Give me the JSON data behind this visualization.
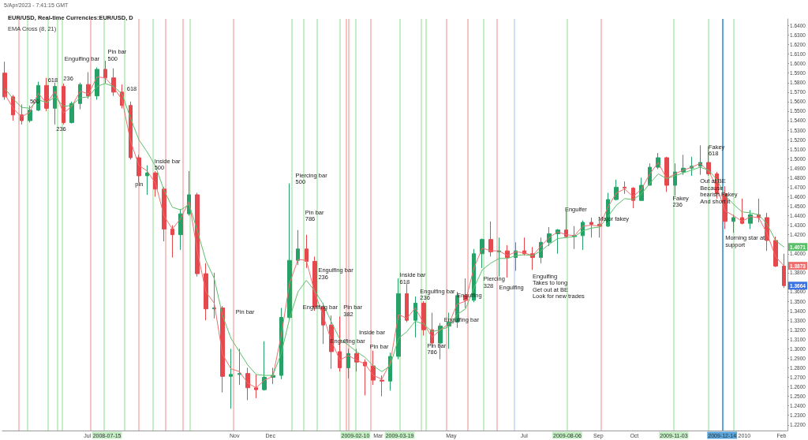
{
  "chart_data": {
    "type": "candlestick",
    "title": "EUR/USD, Real-time Currencies:EUR/USD, D",
    "subtitle": "EMA Cross (8, 21)",
    "annotations": [
      "5/Apr/2023 - 7:41:15 GMT",
      {
        "text": "Engulfing bar",
        "x": "2008-06-12",
        "y": 1.609
      },
      {
        "text": "Pin bar\n500",
        "x": "2008-07-18",
        "y": 1.616
      },
      {
        "text": "618",
        "x": "2008-05-29",
        "y": 1.586
      },
      {
        "text": "500",
        "x": "2008-05-14",
        "y": 1.564
      },
      {
        "text": "236",
        "x": "2008-06-11",
        "y": 1.588
      },
      {
        "text": "236",
        "x": "2008-06-05",
        "y": 1.535
      },
      {
        "text": "618",
        "x": "2008-08-03",
        "y": 1.577
      },
      {
        "text": "Inside bar\n500",
        "x": "2008-08-26",
        "y": 1.501
      },
      {
        "text": "pin",
        "x": "2008-08-10",
        "y": 1.477
      },
      {
        "text": "Pin bar",
        "x": "2008-11-02",
        "y": 1.342
      },
      {
        "text": "Piercing bar\n500",
        "x": "2008-12-22",
        "y": 1.486
      },
      {
        "text": "Pin bar\n786",
        "x": "2008-12-30",
        "y": 1.447
      },
      {
        "text": "Engulfing bar\n236",
        "x": "2009-01-10",
        "y": 1.386
      },
      {
        "text": "Engulfing bar",
        "x": "2008-12-28",
        "y": 1.347
      },
      {
        "text": "Pin bar\n382",
        "x": "2009-01-31",
        "y": 1.347
      },
      {
        "text": "Engulfing bar",
        "x": "2009-01-20",
        "y": 1.312
      },
      {
        "text": "Inside bar",
        "x": "2009-02-13",
        "y": 1.321
      },
      {
        "text": "Pin bar",
        "x": "2009-02-22",
        "y": 1.306
      },
      {
        "text": "Inside bar\n618",
        "x": "2009-03-19",
        "y": 1.381
      },
      {
        "text": "Engulfing bar\n236",
        "x": "2009-04-05",
        "y": 1.364
      },
      {
        "text": "Engulfing bar",
        "x": "2009-04-25",
        "y": 1.334
      },
      {
        "text": "Pin bar\n786",
        "x": "2009-04-11",
        "y": 1.307
      },
      {
        "text": "Engulfing",
        "x": "2009-05-06",
        "y": 1.36
      },
      {
        "text": "Piercing\n328",
        "x": "2009-05-28",
        "y": 1.377
      },
      {
        "text": "Engulfing",
        "x": "2009-06-10",
        "y": 1.368
      },
      {
        "text": "Engulfing\nTakes to long\nGet out at BE\nLook for new trades",
        "x": "2009-07-08",
        "y": 1.38
      },
      {
        "text": "Engulfer",
        "x": "2009-08-04",
        "y": 1.45
      },
      {
        "text": "Major fakey",
        "x": "2009-09-01",
        "y": 1.44
      },
      {
        "text": "Fakey\n236",
        "x": "2009-11-02",
        "y": 1.462
      },
      {
        "text": "Fakey\n618",
        "x": "2009-12-02",
        "y": 1.516
      },
      {
        "text": "Out at BE\nBecause\nbearish Fakey\nAnd short it",
        "x": "2009-11-25",
        "y": 1.48
      },
      {
        "text": "Morning star at support",
        "x": "2009-12-16",
        "y": 1.42
      }
    ],
    "x": [
      "2008-04-23",
      "2008-04-30",
      "2008-05-07",
      "2008-05-14",
      "2008-05-21",
      "2008-05-28",
      "2008-06-04",
      "2008-06-11",
      "2008-06-18",
      "2008-06-25",
      "2008-07-02",
      "2008-07-09",
      "2008-07-16",
      "2008-07-23",
      "2008-07-30",
      "2008-08-06",
      "2008-08-13",
      "2008-08-20",
      "2008-08-27",
      "2008-09-03",
      "2008-09-10",
      "2008-09-17",
      "2008-09-24",
      "2008-10-01",
      "2008-10-08",
      "2008-10-15",
      "2008-10-22",
      "2008-10-29",
      "2008-11-05",
      "2008-11-12",
      "2008-11-19",
      "2008-11-26",
      "2008-12-03",
      "2008-12-10",
      "2008-12-17",
      "2008-12-24",
      "2008-12-31",
      "2009-01-07",
      "2009-01-14",
      "2009-01-21",
      "2009-01-28",
      "2009-02-04",
      "2009-02-11",
      "2009-02-18",
      "2009-02-25",
      "2009-03-04",
      "2009-03-11",
      "2009-03-18",
      "2009-03-25",
      "2009-04-01",
      "2009-04-08",
      "2009-04-15",
      "2009-04-22",
      "2009-04-29",
      "2009-05-06",
      "2009-05-13",
      "2009-05-20",
      "2009-05-27",
      "2009-06-03",
      "2009-06-10",
      "2009-06-17",
      "2009-06-24",
      "2009-07-01",
      "2009-07-08",
      "2009-07-15",
      "2009-07-22",
      "2009-07-29",
      "2009-08-05",
      "2009-08-12",
      "2009-08-19",
      "2009-08-26",
      "2009-09-02",
      "2009-09-09",
      "2009-09-16",
      "2009-09-23",
      "2009-09-30",
      "2009-10-07",
      "2009-10-14",
      "2009-10-21",
      "2009-10-28",
      "2009-11-04",
      "2009-11-11",
      "2009-11-18",
      "2009-11-25",
      "2009-12-02",
      "2009-12-09",
      "2009-12-16",
      "2009-12-23",
      "2009-12-30",
      "2010-01-06",
      "2010-01-13",
      "2010-01-20",
      "2010-01-27",
      "2010-02-03"
    ],
    "ohlc": [
      [
        1.59,
        1.602,
        1.562,
        1.565
      ],
      [
        1.565,
        1.567,
        1.54,
        1.546
      ],
      [
        1.546,
        1.557,
        1.536,
        1.54
      ],
      [
        1.54,
        1.556,
        1.538,
        1.551
      ],
      [
        1.551,
        1.581,
        1.55,
        1.577
      ],
      [
        1.577,
        1.585,
        1.55,
        1.553
      ],
      [
        1.553,
        1.58,
        1.536,
        1.576
      ],
      [
        1.576,
        1.579,
        1.536,
        1.538
      ],
      [
        1.538,
        1.56,
        1.537,
        1.558
      ],
      [
        1.558,
        1.58,
        1.552,
        1.578
      ],
      [
        1.578,
        1.591,
        1.563,
        1.566
      ],
      [
        1.566,
        1.596,
        1.562,
        1.594
      ],
      [
        1.594,
        1.603,
        1.579,
        1.585
      ],
      [
        1.585,
        1.595,
        1.566,
        1.57
      ],
      [
        1.57,
        1.578,
        1.553,
        1.556
      ],
      [
        1.556,
        1.56,
        1.499,
        1.501
      ],
      [
        1.501,
        1.504,
        1.475,
        1.482
      ],
      [
        1.482,
        1.493,
        1.462,
        1.485
      ],
      [
        1.485,
        1.487,
        1.46,
        1.468
      ],
      [
        1.468,
        1.47,
        1.413,
        1.426
      ],
      [
        1.426,
        1.43,
        1.396,
        1.42
      ],
      [
        1.42,
        1.447,
        1.404,
        1.442
      ],
      [
        1.442,
        1.487,
        1.44,
        1.462
      ],
      [
        1.462,
        1.464,
        1.376,
        1.379
      ],
      [
        1.379,
        1.39,
        1.33,
        1.342
      ],
      [
        1.342,
        1.38,
        1.332,
        1.343
      ],
      [
        1.343,
        1.345,
        1.254,
        1.271
      ],
      [
        1.271,
        1.3,
        1.237,
        1.273
      ],
      [
        1.273,
        1.3,
        1.262,
        1.274
      ],
      [
        1.274,
        1.28,
        1.246,
        1.259
      ],
      [
        1.259,
        1.273,
        1.248,
        1.257
      ],
      [
        1.257,
        1.308,
        1.256,
        1.27
      ],
      [
        1.27,
        1.28,
        1.263,
        1.272
      ],
      [
        1.272,
        1.343,
        1.268,
        1.333
      ],
      [
        1.333,
        1.474,
        1.331,
        1.393
      ],
      [
        1.393,
        1.425,
        1.388,
        1.405
      ],
      [
        1.405,
        1.42,
        1.385,
        1.392
      ],
      [
        1.392,
        1.397,
        1.34,
        1.344
      ],
      [
        1.344,
        1.348,
        1.305,
        1.325
      ],
      [
        1.325,
        1.335,
        1.279,
        1.297
      ],
      [
        1.297,
        1.334,
        1.276,
        1.28
      ],
      [
        1.28,
        1.3,
        1.269,
        1.295
      ],
      [
        1.295,
        1.3,
        1.276,
        1.286
      ],
      [
        1.286,
        1.289,
        1.251,
        1.282
      ],
      [
        1.282,
        1.298,
        1.262,
        1.267
      ],
      [
        1.267,
        1.272,
        1.25,
        1.266
      ],
      [
        1.266,
        1.296,
        1.256,
        1.292
      ],
      [
        1.292,
        1.374,
        1.289,
        1.358
      ],
      [
        1.358,
        1.368,
        1.328,
        1.33
      ],
      [
        1.33,
        1.355,
        1.312,
        1.348
      ],
      [
        1.348,
        1.35,
        1.314,
        1.32
      ],
      [
        1.32,
        1.338,
        1.303,
        1.306
      ],
      [
        1.306,
        1.327,
        1.289,
        1.324
      ],
      [
        1.324,
        1.338,
        1.3,
        1.328
      ],
      [
        1.328,
        1.36,
        1.322,
        1.356
      ],
      [
        1.356,
        1.374,
        1.343,
        1.351
      ],
      [
        1.351,
        1.405,
        1.349,
        1.4
      ],
      [
        1.4,
        1.416,
        1.385,
        1.415
      ],
      [
        1.415,
        1.434,
        1.397,
        1.402
      ],
      [
        1.402,
        1.417,
        1.376,
        1.403
      ],
      [
        1.403,
        1.409,
        1.375,
        1.396
      ],
      [
        1.396,
        1.412,
        1.382,
        1.403
      ],
      [
        1.403,
        1.417,
        1.398,
        1.4
      ],
      [
        1.4,
        1.407,
        1.383,
        1.396
      ],
      [
        1.396,
        1.417,
        1.39,
        1.412
      ],
      [
        1.412,
        1.428,
        1.408,
        1.421
      ],
      [
        1.421,
        1.426,
        1.4,
        1.425
      ],
      [
        1.425,
        1.445,
        1.417,
        1.418
      ],
      [
        1.418,
        1.429,
        1.405,
        1.419
      ],
      [
        1.419,
        1.435,
        1.404,
        1.433
      ],
      [
        1.433,
        1.438,
        1.417,
        1.431
      ],
      [
        1.431,
        1.436,
        1.417,
        1.429
      ],
      [
        1.429,
        1.464,
        1.428,
        1.457
      ],
      [
        1.457,
        1.478,
        1.456,
        1.47
      ],
      [
        1.47,
        1.476,
        1.463,
        1.469
      ],
      [
        1.469,
        1.47,
        1.448,
        1.456
      ],
      [
        1.456,
        1.48,
        1.456,
        1.472
      ],
      [
        1.472,
        1.495,
        1.472,
        1.491
      ],
      [
        1.491,
        1.506,
        1.489,
        1.501
      ],
      [
        1.501,
        1.502,
        1.465,
        1.472
      ],
      [
        1.472,
        1.495,
        1.461,
        1.486
      ],
      [
        1.486,
        1.504,
        1.483,
        1.49
      ],
      [
        1.49,
        1.502,
        1.482,
        1.492
      ],
      [
        1.492,
        1.514,
        1.483,
        1.496
      ],
      [
        1.496,
        1.513,
        1.482,
        1.484
      ],
      [
        1.484,
        1.486,
        1.458,
        1.463
      ],
      [
        1.463,
        1.471,
        1.426,
        1.434
      ],
      [
        1.434,
        1.441,
        1.422,
        1.438
      ],
      [
        1.438,
        1.458,
        1.431,
        1.432
      ],
      [
        1.432,
        1.446,
        1.426,
        1.441
      ],
      [
        1.441,
        1.458,
        1.433,
        1.438
      ],
      [
        1.438,
        1.443,
        1.403,
        1.414
      ],
      [
        1.414,
        1.418,
        1.386,
        1.387
      ],
      [
        1.387,
        1.4,
        1.364,
        1.3664
      ]
    ],
    "value_labels": [
      null,
      null,
      null,
      null,
      null,
      null,
      null,
      null,
      null,
      null,
      null,
      null,
      null,
      null,
      null,
      null,
      null,
      null,
      null,
      null,
      null,
      null,
      null,
      null,
      null,
      null,
      null,
      null,
      null,
      null,
      null,
      null,
      null,
      null,
      null,
      null,
      null,
      null,
      null,
      null,
      null,
      null,
      null,
      null,
      null,
      null,
      null,
      null,
      null,
      null,
      null,
      null,
      null,
      null,
      null,
      null,
      null,
      null,
      null,
      null,
      null,
      null,
      null,
      null,
      null,
      null,
      null,
      null,
      null,
      null,
      null,
      null,
      null,
      null,
      null,
      null,
      null,
      null,
      null,
      null,
      null,
      null,
      null,
      null,
      null,
      null,
      null,
      null,
      null,
      null,
      null,
      null,
      null,
      "1.3664"
    ],
    "series": [
      {
        "type": "line",
        "color": "#ef6f6f",
        "values": [
          1.568,
          1.553,
          1.544,
          1.549,
          1.569,
          1.558,
          1.571,
          1.548,
          1.555,
          1.571,
          1.568,
          1.586,
          1.585,
          1.575,
          1.562,
          1.519,
          1.493,
          1.487,
          1.474,
          1.44,
          1.426,
          1.437,
          1.455,
          1.402,
          1.36,
          1.348,
          1.294,
          1.279,
          1.276,
          1.264,
          1.259,
          1.267,
          1.271,
          1.314,
          1.369,
          1.394,
          1.393,
          1.359,
          1.335,
          1.308,
          1.288,
          1.293,
          1.288,
          1.284,
          1.272,
          1.268,
          1.285,
          1.336,
          1.332,
          1.343,
          1.327,
          1.312,
          1.32,
          1.326,
          1.347,
          1.35,
          1.385,
          1.406,
          1.403,
          1.403,
          1.398,
          1.402,
          1.401,
          1.398,
          1.408,
          1.417,
          1.423,
          1.42,
          1.419,
          1.429,
          1.43,
          1.429,
          1.449,
          1.464,
          1.468,
          1.46,
          1.468,
          1.484,
          1.496,
          1.479,
          1.484,
          1.488,
          1.491,
          1.495,
          1.487,
          1.47,
          1.445,
          1.44,
          1.434,
          1.439,
          1.438,
          1.421,
          1.397,
          1.3873
        ],
        "value_labels": [
          null,
          null,
          null,
          null,
          null,
          null,
          null,
          null,
          null,
          null,
          null,
          null,
          null,
          null,
          null,
          null,
          null,
          null,
          null,
          null,
          null,
          null,
          null,
          null,
          null,
          null,
          null,
          null,
          null,
          null,
          null,
          null,
          null,
          null,
          null,
          null,
          null,
          null,
          null,
          null,
          null,
          null,
          null,
          null,
          null,
          null,
          null,
          null,
          null,
          null,
          null,
          null,
          null,
          null,
          null,
          null,
          null,
          null,
          null,
          null,
          null,
          null,
          null,
          null,
          null,
          null,
          null,
          null,
          null,
          null,
          null,
          null,
          null,
          null,
          null,
          null,
          null,
          null,
          null,
          null,
          null,
          null,
          null,
          null,
          null,
          null,
          null,
          null,
          null,
          null,
          null,
          null,
          null,
          "1.3873"
        ]
      },
      {
        "type": "line",
        "color": "#5cbf6a",
        "values": [
          1.574,
          1.563,
          1.554,
          1.553,
          1.562,
          1.559,
          1.565,
          1.555,
          1.556,
          1.564,
          1.565,
          1.576,
          1.579,
          1.576,
          1.568,
          1.543,
          1.52,
          1.507,
          1.492,
          1.467,
          1.449,
          1.446,
          1.452,
          1.424,
          1.393,
          1.374,
          1.335,
          1.311,
          1.297,
          1.283,
          1.273,
          1.272,
          1.272,
          1.295,
          1.332,
          1.36,
          1.372,
          1.361,
          1.347,
          1.328,
          1.31,
          1.304,
          1.297,
          1.291,
          1.282,
          1.276,
          1.282,
          1.311,
          1.318,
          1.329,
          1.326,
          1.318,
          1.32,
          1.323,
          1.336,
          1.342,
          1.364,
          1.383,
          1.39,
          1.395,
          1.395,
          1.398,
          1.399,
          1.398,
          1.403,
          1.41,
          1.416,
          1.417,
          1.418,
          1.424,
          1.427,
          1.428,
          1.439,
          1.451,
          1.458,
          1.457,
          1.463,
          1.474,
          1.484,
          1.479,
          1.482,
          1.485,
          1.488,
          1.491,
          1.488,
          1.478,
          1.461,
          1.452,
          1.444,
          1.443,
          1.441,
          1.431,
          1.414,
          1.4071
        ],
        "value_labels": [
          null,
          null,
          null,
          null,
          null,
          null,
          null,
          null,
          null,
          null,
          null,
          null,
          null,
          null,
          null,
          null,
          null,
          null,
          null,
          null,
          null,
          null,
          null,
          null,
          null,
          null,
          null,
          null,
          null,
          null,
          null,
          null,
          null,
          null,
          null,
          null,
          null,
          null,
          null,
          null,
          null,
          null,
          null,
          null,
          null,
          null,
          null,
          null,
          null,
          null,
          null,
          null,
          null,
          null,
          null,
          null,
          null,
          null,
          null,
          null,
          null,
          null,
          null,
          null,
          null,
          null,
          null,
          null,
          null,
          null,
          null,
          null,
          null,
          null,
          null,
          null,
          null,
          null,
          null,
          null,
          null,
          null,
          null,
          null,
          null,
          null,
          null,
          null,
          null,
          null,
          null,
          null,
          null,
          "1.4071"
        ]
      }
    ],
    "xlim": [
      "2008-04-21",
      "2010-02-06"
    ],
    "xticks": [
      {
        "value": "2008-07-01",
        "label": "Jul"
      },
      {
        "value": "2008-11-01",
        "label": "Nov"
      },
      {
        "value": "2008-12-01",
        "label": "Dec"
      },
      {
        "value": "2009-03-01",
        "label": "Mar"
      },
      {
        "value": "2009-05-01",
        "label": "May"
      },
      {
        "value": "2009-07-01",
        "label": "Jul"
      },
      {
        "value": "2009-09-01",
        "label": "Sep"
      },
      {
        "value": "2009-10-01",
        "label": "Oct"
      },
      {
        "value": "2010-01-01",
        "label": "2010"
      },
      {
        "value": "2010-02-01",
        "label": "Feb"
      }
    ],
    "ylim": [
      1.214,
      1.647
    ],
    "yticks": [
      {
        "value": 1.22,
        "label": "1.2200"
      },
      {
        "value": 1.23,
        "label": "1.2300"
      },
      {
        "value": 1.24,
        "label": "1.2400"
      },
      {
        "value": 1.25,
        "label": "1.2500"
      },
      {
        "value": 1.26,
        "label": "1.2600"
      },
      {
        "value": 1.27,
        "label": "1.2700"
      },
      {
        "value": 1.28,
        "label": "1.2800"
      },
      {
        "value": 1.29,
        "label": "1.2900"
      },
      {
        "value": 1.3,
        "label": "1.3000"
      },
      {
        "value": 1.31,
        "label": "1.3100"
      },
      {
        "value": 1.32,
        "label": "1.3200"
      },
      {
        "value": 1.33,
        "label": "1.3300"
      },
      {
        "value": 1.34,
        "label": "1.3400"
      },
      {
        "value": 1.35,
        "label": "1.3500"
      },
      {
        "value": 1.36,
        "label": "1.3600"
      },
      {
        "value": 1.37,
        "label": null
      },
      {
        "value": 1.38,
        "label": "1.3800"
      },
      {
        "value": 1.39,
        "label": null
      },
      {
        "value": 1.4,
        "label": "1.4000"
      },
      {
        "value": 1.41,
        "label": null
      },
      {
        "value": 1.42,
        "label": "1.4200"
      },
      {
        "value": 1.43,
        "label": "1.4300"
      },
      {
        "value": 1.44,
        "label": "1.4400"
      },
      {
        "value": 1.45,
        "label": "1.4500"
      },
      {
        "value": 1.46,
        "label": "1.4600"
      },
      {
        "value": 1.47,
        "label": "1.4700"
      },
      {
        "value": 1.48,
        "label": "1.4800"
      },
      {
        "value": 1.49,
        "label": "1.4900"
      },
      {
        "value": 1.5,
        "label": "1.5000"
      },
      {
        "value": 1.51,
        "label": "1.5100"
      },
      {
        "value": 1.52,
        "label": "1.5200"
      },
      {
        "value": 1.53,
        "label": "1.5300"
      },
      {
        "value": 1.54,
        "label": "1.5400"
      },
      {
        "value": 1.55,
        "label": "1.5500"
      },
      {
        "value": 1.56,
        "label": "1.5600"
      },
      {
        "value": 1.57,
        "label": "1.5700"
      },
      {
        "value": 1.58,
        "label": "1.5800"
      },
      {
        "value": 1.59,
        "label": "1.5900"
      },
      {
        "value": 1.6,
        "label": "1.6000"
      },
      {
        "value": 1.61,
        "label": "1.6100"
      },
      {
        "value": 1.62,
        "label": "1.6200"
      },
      {
        "value": 1.63,
        "label": "1.6300"
      },
      {
        "value": 1.64,
        "label": "1.6400"
      }
    ],
    "ref_lines": [
      {
        "axis": "x",
        "value": "2008-05-05",
        "label": null,
        "color": "#f7c4c4"
      },
      {
        "axis": "x",
        "value": "2008-07-04",
        "label": null,
        "color": "#f7c4c4"
      },
      {
        "axis": "x",
        "value": "2008-08-13",
        "label": null,
        "color": "#f7c4c4"
      },
      {
        "axis": "x",
        "value": "2008-09-04",
        "label": null,
        "color": "#f7c4c4"
      },
      {
        "axis": "x",
        "value": "2008-09-19",
        "label": null,
        "color": "#f7c4c4"
      },
      {
        "axis": "x",
        "value": "2008-10-31",
        "label": null,
        "color": "#f7c4c4"
      },
      {
        "axis": "x",
        "value": "2009-02-02",
        "label": null,
        "color": "#f7c4c4"
      },
      {
        "axis": "x",
        "value": "2009-02-04",
        "label": null,
        "color": "#f7c4c4"
      },
      {
        "axis": "x",
        "value": "2009-02-23",
        "label": null,
        "color": "#f7c4c4"
      },
      {
        "axis": "x",
        "value": "2009-04-27",
        "label": null,
        "color": "#f7c4c4"
      },
      {
        "axis": "x",
        "value": "2009-05-15",
        "label": null,
        "color": "#f7c4c4"
      },
      {
        "axis": "x",
        "value": "2009-06-08",
        "label": null,
        "color": "#f7c4c4"
      },
      {
        "axis": "x",
        "value": "2009-09-03",
        "label": null,
        "color": "#f7c4c4"
      },
      {
        "axis": "x",
        "value": "2008-05-12",
        "label": null,
        "color": "#c4eec4"
      },
      {
        "axis": "x",
        "value": "2008-05-29",
        "label": null,
        "color": "#c4eec4"
      },
      {
        "axis": "x",
        "value": "2008-06-06",
        "label": null,
        "color": "#c4eec4"
      },
      {
        "axis": "x",
        "value": "2008-06-10",
        "label": null,
        "color": "#c4eec4"
      },
      {
        "axis": "x",
        "value": "2008-07-15",
        "label": "2008-07-15",
        "color": "#c4eec4"
      },
      {
        "axis": "x",
        "value": "2008-08-01",
        "label": null,
        "color": "#c4eec4"
      },
      {
        "axis": "x",
        "value": "2008-08-25",
        "label": null,
        "color": "#c4eec4"
      },
      {
        "axis": "x",
        "value": "2008-09-25",
        "label": null,
        "color": "#c4eec4"
      },
      {
        "axis": "x",
        "value": "2008-12-19",
        "label": null,
        "color": "#c4eec4"
      },
      {
        "axis": "x",
        "value": "2008-12-29",
        "label": null,
        "color": "#c4eec4"
      },
      {
        "axis": "x",
        "value": "2009-01-09",
        "label": null,
        "color": "#c4eec4"
      },
      {
        "axis": "x",
        "value": "2009-01-28",
        "label": null,
        "color": "#c4eec4"
      },
      {
        "axis": "x",
        "value": "2009-02-10",
        "label": "2009-02-10",
        "color": "#c4eec4"
      },
      {
        "axis": "x",
        "value": "2009-03-19",
        "label": "2009-03-19",
        "color": "#c4eec4"
      },
      {
        "axis": "x",
        "value": "2009-04-06",
        "label": null,
        "color": "#c4eec4"
      },
      {
        "axis": "x",
        "value": "2009-04-10",
        "label": null,
        "color": "#c4eec4"
      },
      {
        "axis": "x",
        "value": "2009-05-28",
        "label": null,
        "color": "#c4eec4"
      },
      {
        "axis": "x",
        "value": "2009-08-06",
        "label": "2009-08-06",
        "color": "#c4eec4"
      },
      {
        "axis": "x",
        "value": "2009-11-03",
        "label": "2009-11-03",
        "color": "#c4eec4"
      },
      {
        "axis": "x",
        "value": "2009-12-02",
        "label": null,
        "color": "#c4eec4"
      },
      {
        "axis": "x",
        "value": "2009-12-23",
        "label": null,
        "color": "#c4eec4"
      },
      {
        "axis": "x",
        "value": "2009-06-23",
        "label": null,
        "color": "#cfe0fa"
      },
      {
        "axis": "x",
        "value": "2009-12-14",
        "label": "2009-12-14",
        "color": "#5aa6dc"
      }
    ]
  }
}
